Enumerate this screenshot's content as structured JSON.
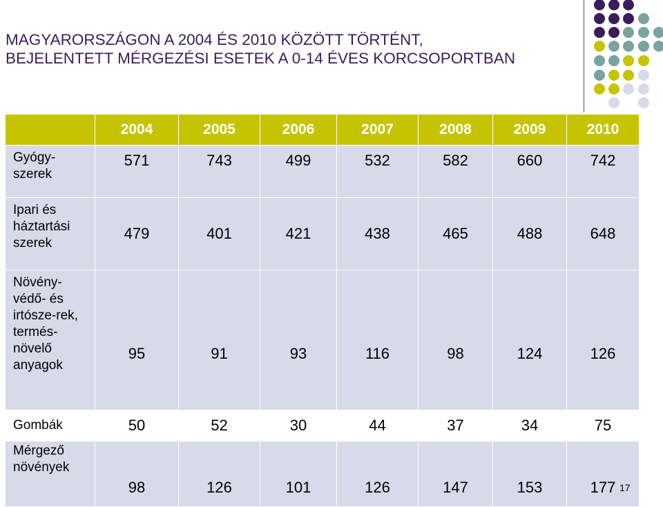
{
  "title": {
    "line1": "MAGYARORSZÁGON A 2004 ÉS 2010 KÖZÖTT TÖRTÉNT,",
    "line2": "BEJELENTETT MÉRGEZÉSI ESETEK A 0-14 ÉVES KORCSOPORTBAN"
  },
  "colors": {
    "title": "#3b1c5a",
    "header_bg": "#c6c400",
    "band_bg": "#d7dae8",
    "dot_purple": "#3b1c5a",
    "dot_teal": "#7ba3a0",
    "dot_olive": "#c6c400",
    "dot_lavender": "#d7dae8"
  },
  "table": {
    "years": [
      "2004",
      "2005",
      "2006",
      "2007",
      "2008",
      "2009",
      "2010"
    ],
    "rows": [
      {
        "label": "Gyógy-\nszerek",
        "values": [
          "571",
          "743",
          "499",
          "532",
          "582",
          "660",
          "742"
        ]
      },
      {
        "label": "Ipari és\nháztartási\nszerek",
        "values": [
          "479",
          "401",
          "421",
          "438",
          "465",
          "488",
          "648"
        ]
      },
      {
        "label": "Növény-\nvédő- és\nirtósze-rek,\ntermés-\nnövelő\nanyagok",
        "values": [
          "95",
          "91",
          "93",
          "116",
          "98",
          "124",
          "126"
        ]
      },
      {
        "label": "Gombák",
        "values": [
          "50",
          "52",
          "30",
          "44",
          "37",
          "34",
          "75"
        ]
      },
      {
        "label": "Mérgező\nnövények",
        "values": [
          "98",
          "126",
          "101",
          "126",
          "147",
          "153",
          "177"
        ]
      }
    ]
  },
  "page_number": "17"
}
